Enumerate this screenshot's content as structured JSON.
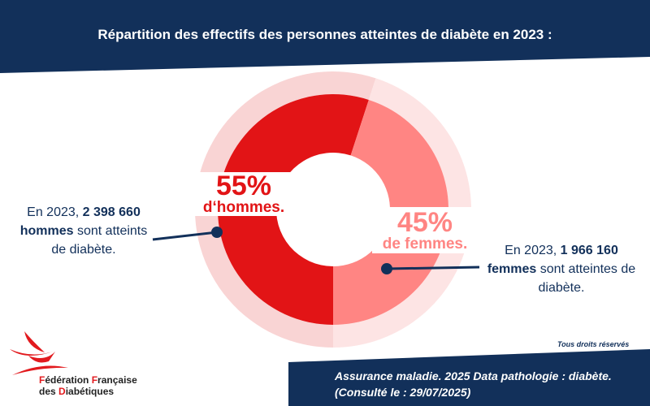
{
  "title": "Répartition des effectifs des personnes atteintes de diabète en 2023 :",
  "chart_data": {
    "type": "pie",
    "categories": [
      "hommes",
      "femmes"
    ],
    "values": [
      55,
      45
    ],
    "colors": [
      "#e21416",
      "#ff8583"
    ],
    "halo_colors": [
      "#f9d4d4",
      "#fde4e4"
    ],
    "labels": [
      {
        "pct": "55%",
        "text": "d‘hommes."
      },
      {
        "pct": "45%",
        "text": "de femmes."
      }
    ]
  },
  "annotations": {
    "men": {
      "pre": "En 2023, ",
      "bold": "2 398 660 hommes",
      "post": " sont atteints de diabète."
    },
    "women": {
      "pre": "En 2023, ",
      "bold": "1 966 160 femmes",
      "post": " sont atteintes de diabète."
    }
  },
  "rights": "Tous droits réservés",
  "source": {
    "line1": "Assurance maladie. 2025 Data pathologie : diabète.",
    "line2": "(Consulté le : 29/07/2025)"
  },
  "logo": {
    "l1a": "F",
    "l1b": "édération ",
    "l1c": "F",
    "l1d": "rançaise",
    "l2a": "des ",
    "l2b": "D",
    "l2c": "iabétiques"
  },
  "colors": {
    "navy": "#12305a",
    "red": "#e21416",
    "pink": "#ff8583"
  }
}
